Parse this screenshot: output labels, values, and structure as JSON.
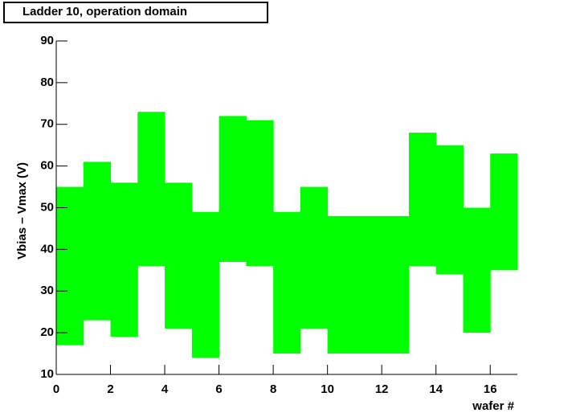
{
  "chart_data": {
    "type": "floating_bar",
    "title": "Ladder 10, operation domain",
    "x_label": "wafer #",
    "y_label": "Vbias – Vmax (V)",
    "bins": [
      0,
      1,
      2,
      3,
      4,
      5,
      6,
      7,
      8,
      9,
      10,
      11,
      12,
      13,
      14,
      15,
      16,
      17
    ],
    "low": [
      17,
      23,
      19,
      36,
      21,
      14,
      37,
      36,
      15,
      21,
      15,
      15,
      15,
      36,
      34,
      20,
      35
    ],
    "high": [
      55,
      61,
      56,
      73,
      56,
      49,
      72,
      71,
      49,
      55,
      48,
      48,
      48,
      68,
      65,
      50,
      63
    ],
    "color": "#00ff00",
    "xlim": [
      0,
      17
    ],
    "xticks": [
      0,
      2,
      4,
      6,
      8,
      10,
      12,
      14,
      16
    ],
    "ylim": [
      10,
      90
    ],
    "yticks": [
      10,
      20,
      30,
      40,
      50,
      60,
      70,
      80,
      90
    ]
  }
}
